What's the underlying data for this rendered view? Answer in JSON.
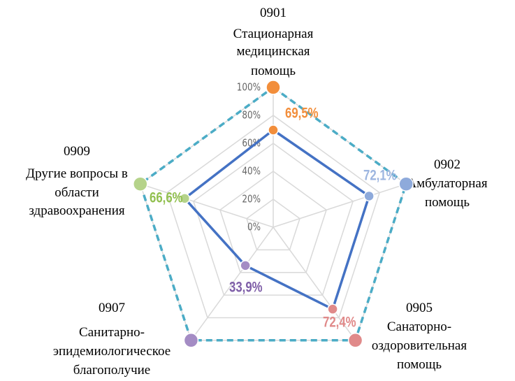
{
  "chart_data": {
    "type": "radar",
    "categories": [
      [
        "0901",
        "Стационарная",
        "медицинская",
        "помощь"
      ],
      [
        "0902",
        "Амбулаторная",
        "помощь"
      ],
      [
        "0905",
        "Санаторно-",
        "оздоровительная",
        "помощь"
      ],
      [
        "0907",
        "Санитарно-",
        "эпидемиологическое",
        "благополучие"
      ],
      [
        "0909",
        "Другие вопросы в",
        "области",
        "здравоохранения"
      ]
    ],
    "point_colors": [
      "#f28e3b",
      "#8eaadb",
      "#e08a8a",
      "#a48cc4",
      "#b5d38a"
    ],
    "series": [
      {
        "values": [
          69.5,
          72.1,
          72.4,
          33.9,
          66.6
        ],
        "value_labels": [
          "69,5%",
          "72,1%",
          "72,4%",
          "33,9%",
          "66,6%"
        ],
        "color": "#4472c4",
        "dashed": false
      },
      {
        "values": [
          100,
          100,
          100,
          100,
          100
        ],
        "color": "#4bacc6",
        "dashed": true
      }
    ],
    "ylim": [
      0,
      100
    ],
    "yticks": [
      {
        "value": 0,
        "label": "0%"
      },
      {
        "value": 20,
        "label": "20%"
      },
      {
        "value": 40,
        "label": "40%"
      },
      {
        "value": 60,
        "label": "60%"
      },
      {
        "value": 80,
        "label": "80%"
      },
      {
        "value": 100,
        "label": "100%"
      }
    ],
    "grid": true
  }
}
